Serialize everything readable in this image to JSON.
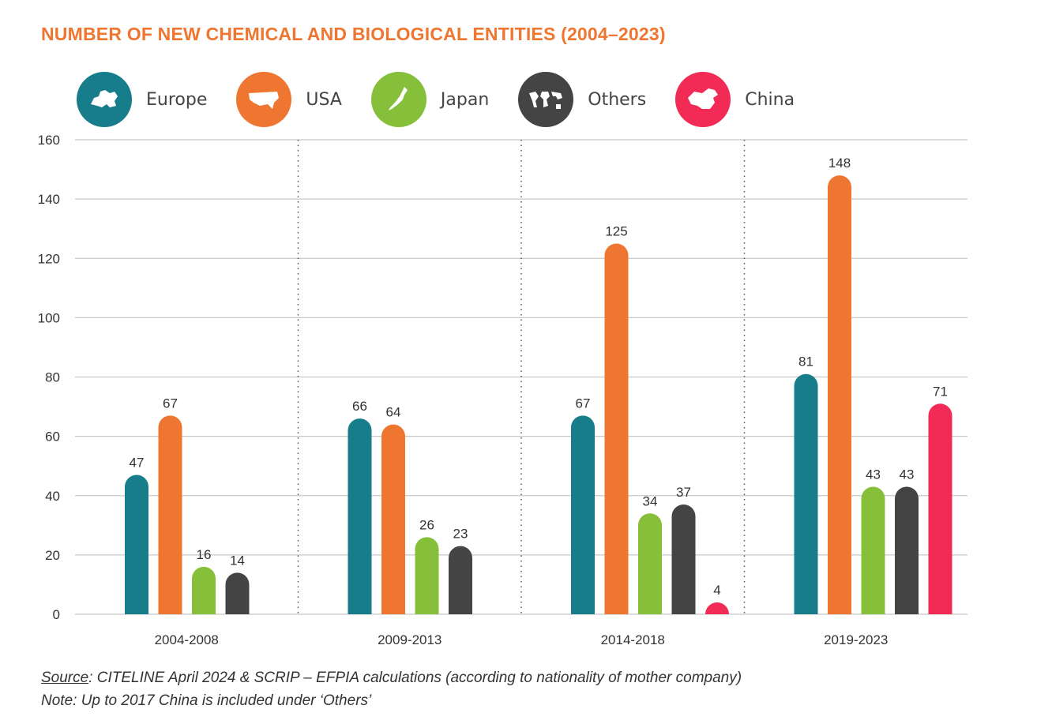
{
  "title": "NUMBER OF NEW CHEMICAL AND BIOLOGICAL ENTITIES (2004–2023)",
  "legend": [
    {
      "name": "Europe",
      "icon": "europe-map-icon"
    },
    {
      "name": "USA",
      "icon": "usa-map-icon"
    },
    {
      "name": "Japan",
      "icon": "japan-map-icon"
    },
    {
      "name": "Others",
      "icon": "world-map-icon"
    },
    {
      "name": "China",
      "icon": "china-map-icon"
    }
  ],
  "footnote": {
    "source_label": "Source",
    "source_text": ": CITELINE April 2024 & SCRIP – EFPIA calculations (according to nationality of mother company)",
    "note": "Note: Up to 2017 China is included under ‘Others’"
  },
  "chart_data": {
    "type": "bar",
    "title": "NUMBER OF NEW CHEMICAL AND BIOLOGICAL ENTITIES (2004–2023)",
    "categories": [
      "2004-2008",
      "2009-2013",
      "2014-2018",
      "2019-2023"
    ],
    "series": [
      {
        "name": "Europe",
        "color": "#177d8a",
        "values": [
          47,
          66,
          67,
          81
        ]
      },
      {
        "name": "USA",
        "color": "#ee7631",
        "values": [
          67,
          64,
          125,
          148
        ]
      },
      {
        "name": "Japan",
        "color": "#86bf3a",
        "values": [
          16,
          26,
          34,
          43
        ]
      },
      {
        "name": "Others",
        "color": "#444444",
        "values": [
          14,
          23,
          37,
          43
        ]
      },
      {
        "name": "China",
        "color": "#f12a56",
        "values": [
          null,
          null,
          4,
          71
        ]
      }
    ],
    "ylim": [
      0,
      160
    ],
    "yticks": [
      0,
      20,
      40,
      60,
      80,
      100,
      120,
      140,
      160
    ],
    "grid": true,
    "legend_position": "top-left",
    "xlabel": "",
    "ylabel": ""
  }
}
